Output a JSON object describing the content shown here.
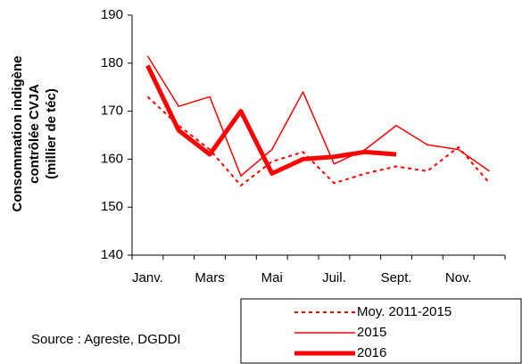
{
  "chart_data": {
    "type": "line",
    "y_label": [
      "Consommation indigène",
      "contrôlée CVJA",
      "(millier de téc)"
    ],
    "annotation": "Source : Agreste, DGDDI",
    "categories": [
      "Janv.",
      null,
      "Mars",
      null,
      "Mai",
      null,
      "Juil.",
      null,
      "Sept.",
      null,
      "Nov.",
      null
    ],
    "series": [
      {
        "name": "Moy. 2011-2015",
        "color": "#ff0000",
        "style": "dashed",
        "width": 2,
        "values": [
          173,
          167,
          162,
          154.5,
          159.5,
          161.5,
          155,
          157,
          158.5,
          157.5,
          162.5,
          155
        ]
      },
      {
        "name": "2015",
        "color": "#ff0000",
        "style": "solid",
        "width": 1.5,
        "values": [
          181.5,
          171,
          173,
          156.5,
          162,
          174,
          159,
          162,
          167,
          163,
          162,
          157.5
        ]
      },
      {
        "name": "2016",
        "color": "#ff0000",
        "style": "solid",
        "width": 5,
        "values": [
          179.5,
          166,
          161,
          170,
          157,
          160,
          160.5,
          161.5,
          161,
          null,
          null,
          null
        ]
      }
    ],
    "ylim": [
      140,
      190
    ],
    "yticks": [
      140,
      150,
      160,
      170,
      180,
      190
    ],
    "legend": "bottom-right"
  }
}
